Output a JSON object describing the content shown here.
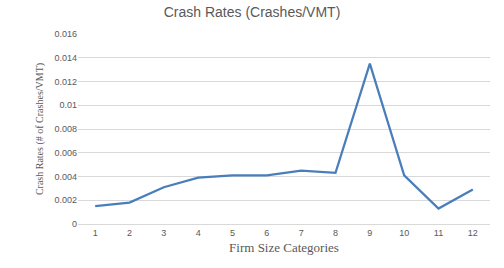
{
  "chart_data": {
    "type": "line",
    "title": "Crash Rates (Crashes/VMT)",
    "x_label": "Firm Size Categories",
    "y_label": "Crash Rates (# of Crashes/VMT)",
    "categories": [
      "1",
      "2",
      "3",
      "4",
      "5",
      "6",
      "7",
      "8",
      "9",
      "10",
      "11",
      "12"
    ],
    "values": [
      0.0015,
      0.0018,
      0.0031,
      0.0039,
      0.0041,
      0.0041,
      0.0045,
      0.0043,
      0.0135,
      0.0041,
      0.0013,
      0.0029
    ],
    "color": "#4a7ebb",
    "ylim": [
      0,
      0.016
    ],
    "yticks": [
      0,
      0.002,
      0.004,
      0.006,
      0.008,
      0.01,
      0.012,
      0.014,
      0.016
    ],
    "grid": true
  }
}
